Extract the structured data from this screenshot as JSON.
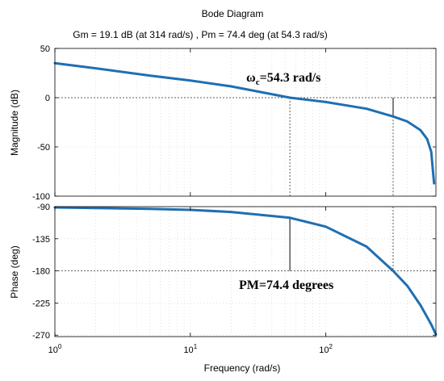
{
  "chart_data": {
    "type": "line",
    "title": "Bode Diagram",
    "subtitle": "Gm = 19.1 dB (at 314 rad/s) ,  Pm = 74.4 deg (at 54.3 rad/s)",
    "xlabel": "Frequency  (rad/s)",
    "x_scale": "log",
    "xlim": [
      1,
      650
    ],
    "x_ticks": [
      {
        "value": 1,
        "base": "10",
        "exp": "0"
      },
      {
        "value": 10,
        "base": "10",
        "exp": "1"
      },
      {
        "value": 100,
        "base": "10",
        "exp": "2"
      }
    ],
    "grid": true,
    "line_color": "#1f6fb2",
    "panels": [
      {
        "name": "magnitude",
        "ylabel": "Magnitude (dB)",
        "ylim": [
          -100,
          50
        ],
        "yticks": [
          "50",
          "0",
          "-50",
          "-100"
        ],
        "ytick_values": [
          50,
          0,
          -50,
          -100
        ],
        "x": [
          1,
          2,
          5,
          10,
          20,
          54.3,
          100,
          200,
          314,
          400,
          500,
          560,
          600,
          630
        ],
        "y": [
          35,
          29.8,
          22.5,
          17.4,
          11.5,
          0,
          -4.4,
          -11.2,
          -19.1,
          -24.2,
          -33.0,
          -42.0,
          -55.0,
          -87.0
        ],
        "annotation": {
          "base": "ω",
          "sub": "c",
          "rest": "=54.3 rad/s"
        },
        "marker_x": 54.3,
        "gain_marker_x": 314,
        "gain_marker_range": [
          0,
          -19.1
        ]
      },
      {
        "name": "phase",
        "ylabel": "Phase (deg)",
        "ylim": [
          -272,
          -90
        ],
        "yticks": [
          "-90",
          "-135",
          "-180",
          "-225",
          "-270"
        ],
        "ytick_values": [
          -90,
          -135,
          -180,
          -225,
          -270
        ],
        "x": [
          1,
          5,
          10,
          20,
          54.3,
          100,
          200,
          314,
          400,
          500,
          600,
          650
        ],
        "y": [
          -91.1,
          -93.0,
          -94.5,
          -97.5,
          -105.6,
          -118.0,
          -146.0,
          -180.0,
          -201.0,
          -228.0,
          -255.0,
          -269.0
        ],
        "annotation": {
          "text": "PM=74.4 degrees"
        },
        "marker_x": 54.3,
        "marker_range": [
          -105.6,
          -180
        ],
        "phase_marker_x": 314
      }
    ]
  }
}
